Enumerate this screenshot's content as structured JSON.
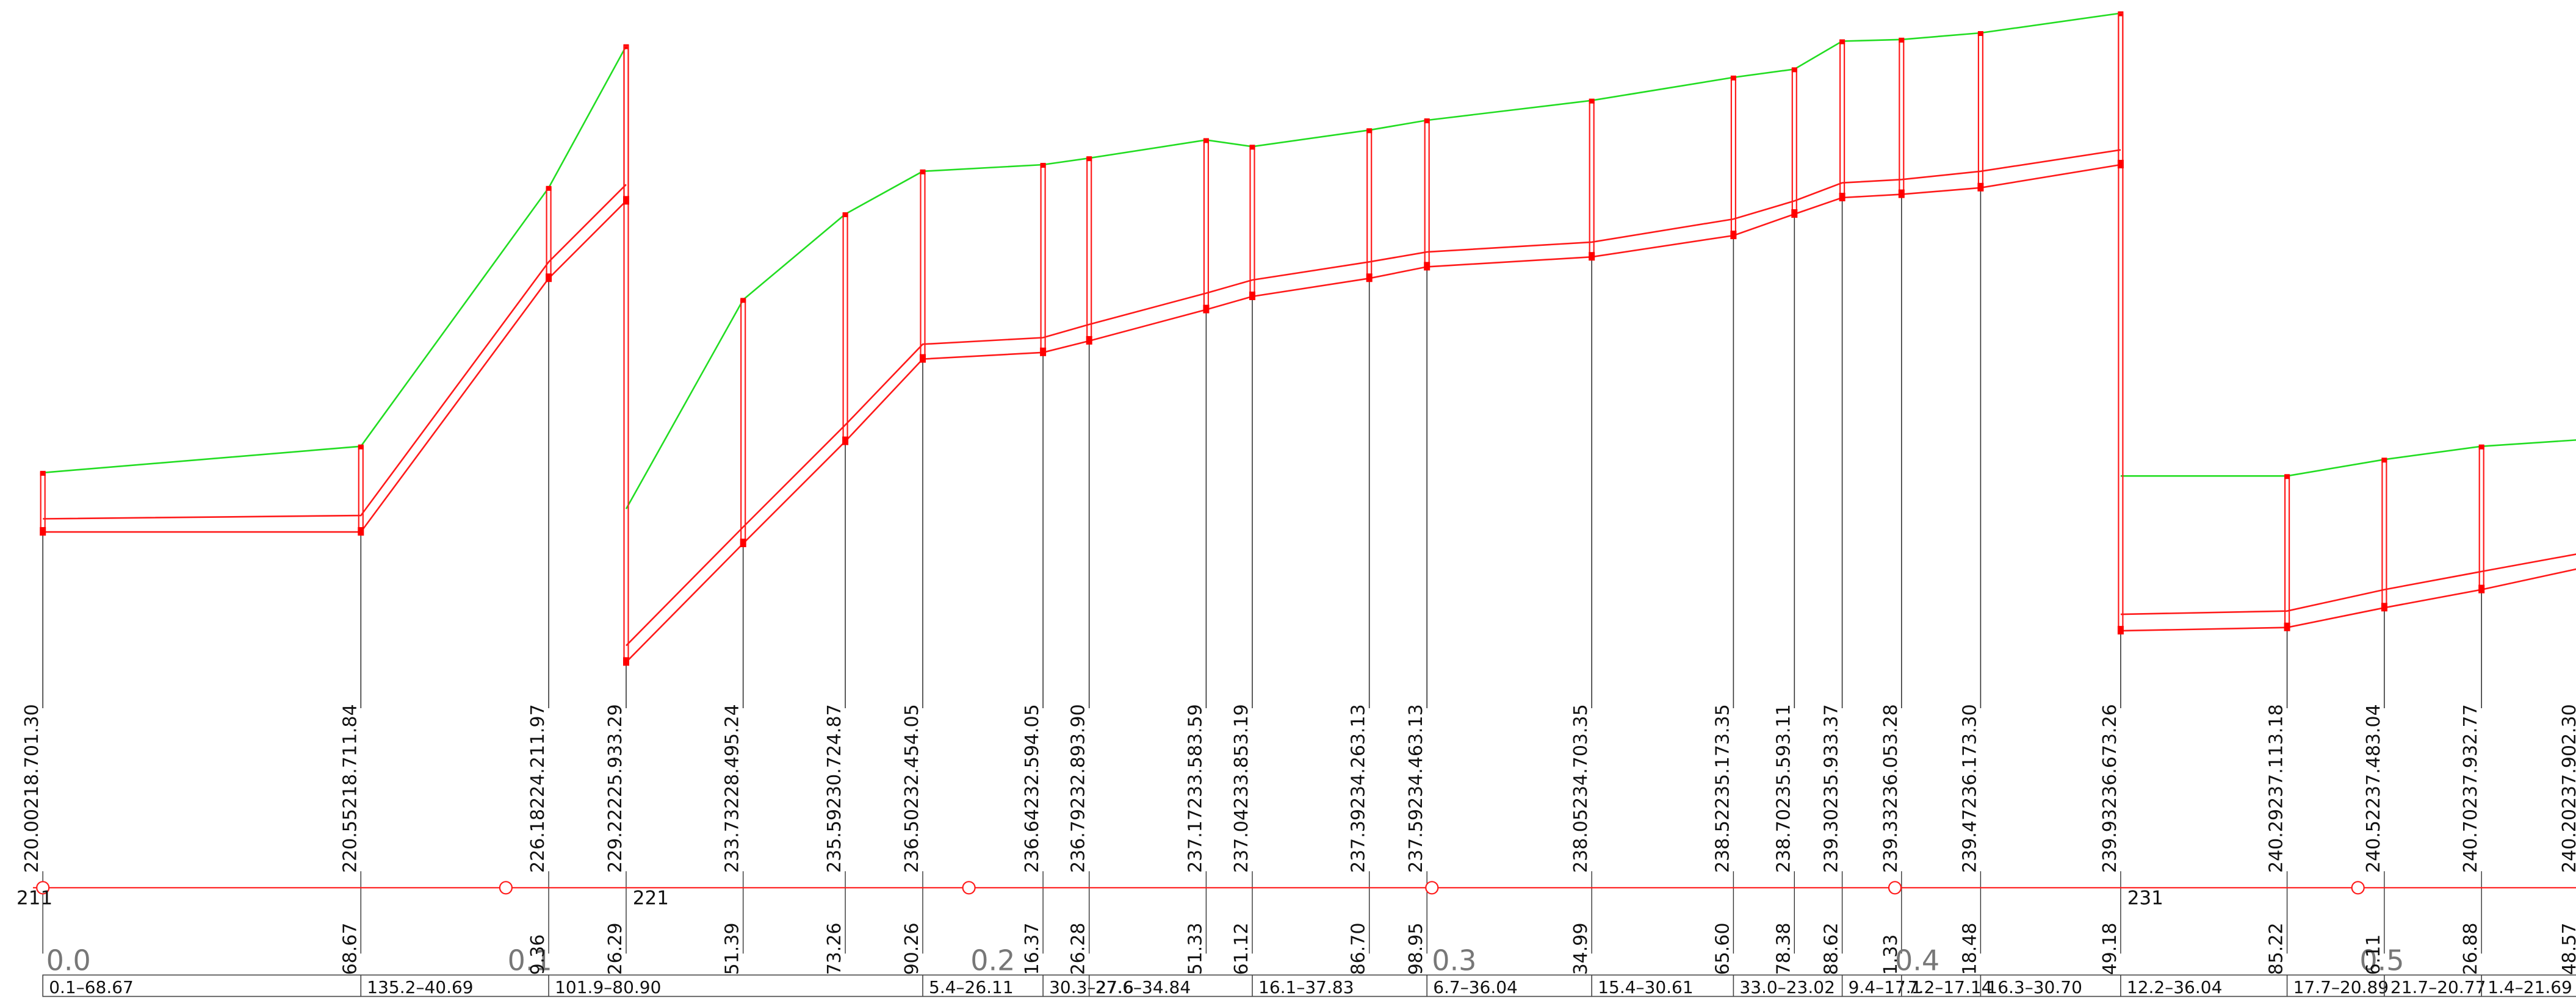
{
  "profile": {
    "colors": {
      "background": "#ffffff",
      "ground_line": "#22dd22",
      "pipe_line": "#ff1a1a",
      "marker": "#ff0000",
      "stem": "#333333",
      "text": "#111111",
      "table_border": "#444444"
    },
    "stations": [
      {
        "label": "220.00218.701.30",
        "distance": null
      },
      {
        "label": "220.55218.711.84",
        "distance": "68.67"
      },
      {
        "label": "226.18224.211.97",
        "distance": "9.36"
      },
      {
        "label": "229.22225.933.29",
        "distance": "26.29"
      },
      {
        "label": "233.73228.495.24",
        "distance": "51.39"
      },
      {
        "label": "235.59230.724.87",
        "distance": "73.26"
      },
      {
        "label": "236.50232.454.05",
        "distance": "90.26"
      },
      {
        "label": "236.64232.594.05",
        "distance": "16.37"
      },
      {
        "label": "236.79232.893.90",
        "distance": "26.28"
      },
      {
        "label": "237.17233.583.59",
        "distance": "51.33"
      },
      {
        "label": "237.04233.853.19",
        "distance": "61.12"
      },
      {
        "label": "237.39234.263.13",
        "distance": "86.70"
      },
      {
        "label": "237.59234.463.13",
        "distance": "98.95"
      },
      {
        "label": "238.05234.703.35",
        "distance": "34.99"
      },
      {
        "label": "238.52235.173.35",
        "distance": "65.60"
      },
      {
        "label": "238.70235.593.11",
        "distance": "78.38"
      },
      {
        "label": "239.30235.933.37",
        "distance": "88.62"
      },
      {
        "label": "239.33236.053.28",
        "distance": "1.33"
      },
      {
        "label": "239.47236.173.30",
        "distance": "18.48"
      },
      {
        "label": "239.93236.673.26",
        "distance": "49.18"
      },
      {
        "label": "240.29237.113.18",
        "distance": "85.22"
      },
      {
        "label": "240.52237.483.04",
        "distance": "6.11"
      },
      {
        "label": "240.70237.932.77",
        "distance": "26.88"
      },
      {
        "label": "240.20237.902.30",
        "distance": "48.57"
      }
    ],
    "node_labels": [
      "211",
      "221",
      "231"
    ],
    "km_labels": [
      "0.0",
      "0.1",
      "0.2",
      "0.3",
      "0.4",
      "0.5"
    ],
    "segments": [
      "0.1–68.67",
      "135.2–40.69",
      "101.9–80.90",
      "5.4–26.11",
      "30.3–27.6",
      "27.6–34.84",
      "16.1–37.83",
      "6.7–36.04",
      "15.4–30.61",
      "33.0–23.02",
      "9.4–17.1",
      "7.2–17.14",
      "16.3–30.70",
      "12.2–36.04",
      "17.7–20.89",
      "21.7–20.77",
      "1.4–21.69"
    ]
  }
}
